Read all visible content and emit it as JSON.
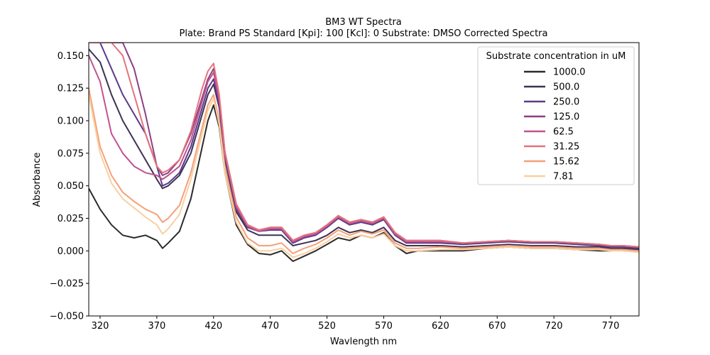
{
  "chart_data": {
    "type": "line",
    "title": "BM3 WT Spectra",
    "subtitle": "Plate: Brand PS Standard  [Kpi]: 100  [Kcl]: 0  Substrate: DMSO Corrected Spectra",
    "xlabel": "Wavlength nm",
    "ylabel": "Absorbance",
    "xlim": [
      310,
      795
    ],
    "ylim": [
      -0.05,
      0.16
    ],
    "xticks": [
      320,
      370,
      420,
      470,
      520,
      570,
      620,
      670,
      720,
      770
    ],
    "yticks": [
      -0.05,
      -0.025,
      0.0,
      0.025,
      0.05,
      0.075,
      0.1,
      0.125,
      0.15
    ],
    "ytick_labels": [
      "−0.050",
      "−0.025",
      "0.000",
      "0.025",
      "0.050",
      "0.075",
      "0.100",
      "0.125",
      "0.150"
    ],
    "grid": false,
    "legend": {
      "title": "Substrate concentration in uM",
      "placement": "top-right"
    },
    "x": [
      310,
      320,
      330,
      340,
      350,
      360,
      370,
      375,
      380,
      390,
      400,
      410,
      415,
      420,
      425,
      430,
      440,
      450,
      460,
      470,
      480,
      490,
      500,
      510,
      520,
      530,
      540,
      550,
      560,
      570,
      580,
      590,
      600,
      620,
      640,
      660,
      680,
      700,
      720,
      740,
      760,
      770,
      780,
      795
    ],
    "series": [
      {
        "name": "1000.0",
        "color": "#2b2b2b",
        "values": [
          0.048,
          0.032,
          0.02,
          0.012,
          0.01,
          0.012,
          0.008,
          0.002,
          0.006,
          0.015,
          0.04,
          0.08,
          0.1,
          0.112,
          0.095,
          0.06,
          0.02,
          0.005,
          -0.002,
          -0.003,
          0.0,
          -0.008,
          -0.004,
          0.0,
          0.005,
          0.01,
          0.008,
          0.012,
          0.01,
          0.014,
          0.004,
          -0.002,
          0.0,
          0.0,
          0.0,
          0.002,
          0.003,
          0.002,
          0.002,
          0.001,
          0.0,
          0.0,
          0.001,
          0.0
        ]
      },
      {
        "name": "500.0",
        "color": "#3d3254",
        "values": [
          0.155,
          0.145,
          0.12,
          0.1,
          0.085,
          0.07,
          0.055,
          0.048,
          0.05,
          0.058,
          0.075,
          0.105,
          0.12,
          0.128,
          0.11,
          0.07,
          0.03,
          0.016,
          0.012,
          0.012,
          0.012,
          0.004,
          0.006,
          0.008,
          0.012,
          0.018,
          0.014,
          0.016,
          0.014,
          0.018,
          0.008,
          0.004,
          0.004,
          0.004,
          0.003,
          0.004,
          0.005,
          0.004,
          0.004,
          0.003,
          0.003,
          0.002,
          0.002,
          0.001
        ]
      },
      {
        "name": "250.0",
        "color": "#5a3a8a",
        "values": [
          0.16,
          0.16,
          0.14,
          0.12,
          0.105,
          0.09,
          0.065,
          0.05,
          0.052,
          0.06,
          0.08,
          0.11,
          0.125,
          0.132,
          0.112,
          0.072,
          0.032,
          0.018,
          0.015,
          0.016,
          0.016,
          0.006,
          0.01,
          0.012,
          0.018,
          0.025,
          0.02,
          0.022,
          0.02,
          0.024,
          0.012,
          0.006,
          0.006,
          0.006,
          0.005,
          0.006,
          0.007,
          0.006,
          0.006,
          0.005,
          0.004,
          0.003,
          0.003,
          0.002
        ]
      },
      {
        "name": "125.0",
        "color": "#8e3f83",
        "values": [
          0.16,
          0.16,
          0.16,
          0.16,
          0.14,
          0.105,
          0.065,
          0.058,
          0.06,
          0.07,
          0.09,
          0.118,
          0.132,
          0.14,
          0.118,
          0.076,
          0.036,
          0.02,
          0.016,
          0.018,
          0.018,
          0.008,
          0.012,
          0.014,
          0.02,
          0.027,
          0.022,
          0.024,
          0.022,
          0.026,
          0.014,
          0.008,
          0.008,
          0.008,
          0.006,
          0.007,
          0.008,
          0.007,
          0.007,
          0.006,
          0.005,
          0.004,
          0.004,
          0.003
        ]
      },
      {
        "name": "62.5",
        "color": "#c2528f",
        "values": [
          0.15,
          0.13,
          0.09,
          0.075,
          0.065,
          0.06,
          0.058,
          0.055,
          0.058,
          0.065,
          0.085,
          0.115,
          0.13,
          0.137,
          0.116,
          0.074,
          0.034,
          0.019,
          0.015,
          0.017,
          0.017,
          0.007,
          0.011,
          0.013,
          0.019,
          0.026,
          0.021,
          0.023,
          0.021,
          0.025,
          0.013,
          0.007,
          0.007,
          0.007,
          0.006,
          0.007,
          0.008,
          0.007,
          0.007,
          0.006,
          0.005,
          0.004,
          0.004,
          0.003
        ]
      },
      {
        "name": "31.25",
        "color": "#e4737c",
        "values": [
          0.16,
          0.16,
          0.16,
          0.15,
          0.12,
          0.09,
          0.065,
          0.06,
          0.062,
          0.07,
          0.092,
          0.125,
          0.138,
          0.144,
          0.12,
          0.076,
          0.036,
          0.02,
          0.016,
          0.018,
          0.018,
          0.008,
          0.012,
          0.014,
          0.02,
          0.027,
          0.022,
          0.024,
          0.022,
          0.026,
          0.014,
          0.008,
          0.008,
          0.008,
          0.006,
          0.007,
          0.008,
          0.007,
          0.007,
          0.006,
          0.005,
          0.004,
          0.004,
          0.003
        ]
      },
      {
        "name": "15.62",
        "color": "#f5a07a",
        "values": [
          0.125,
          0.08,
          0.058,
          0.045,
          0.038,
          0.032,
          0.028,
          0.022,
          0.025,
          0.035,
          0.06,
          0.095,
          0.112,
          0.12,
          0.1,
          0.064,
          0.026,
          0.01,
          0.004,
          0.004,
          0.006,
          -0.002,
          0.002,
          0.005,
          0.01,
          0.016,
          0.012,
          0.015,
          0.013,
          0.016,
          0.006,
          0.002,
          0.002,
          0.003,
          0.002,
          0.003,
          0.004,
          0.003,
          0.003,
          0.002,
          0.002,
          0.001,
          0.001,
          0.0
        ]
      },
      {
        "name": "7.81",
        "color": "#f9d0a0",
        "values": [
          0.12,
          0.075,
          0.052,
          0.04,
          0.033,
          0.026,
          0.02,
          0.013,
          0.017,
          0.028,
          0.055,
          0.09,
          0.108,
          0.117,
          0.097,
          0.06,
          0.022,
          0.006,
          0.0,
          0.0,
          0.002,
          -0.005,
          -0.002,
          0.002,
          0.007,
          0.013,
          0.01,
          0.012,
          0.01,
          0.013,
          0.004,
          0.0,
          0.0,
          0.001,
          0.001,
          0.002,
          0.003,
          0.002,
          0.002,
          0.001,
          0.001,
          0.0,
          0.0,
          -0.001
        ]
      }
    ]
  }
}
